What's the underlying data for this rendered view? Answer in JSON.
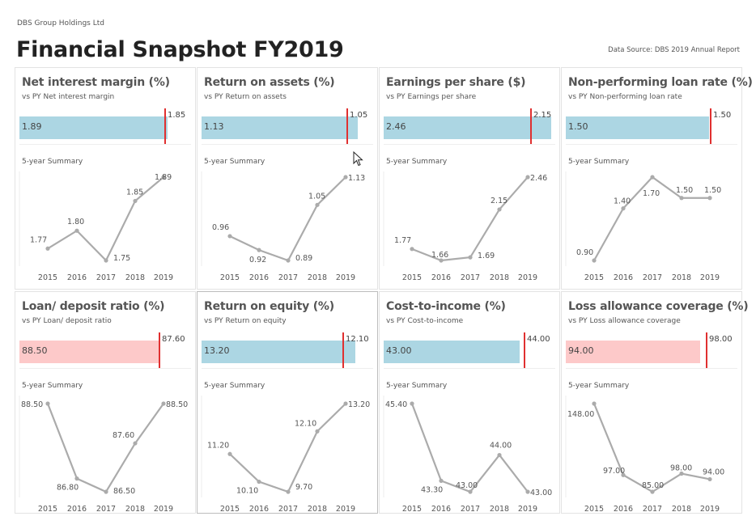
{
  "header": {
    "company": "DBS Group Holdings Ltd",
    "title": "Financial Snapshot FY2019",
    "source": "Data Source: DBS 2019 Annual Report"
  },
  "colors": {
    "favorable_bar": "#acd6e3",
    "unfavorable_bar": "#fdc9c9",
    "target_line": "#e03030",
    "trend_line": "#ababab"
  },
  "summary_label": "5-year Summary",
  "chart_data": [
    {
      "type": "line",
      "title": "Net interest margin (%)",
      "subtitle": "vs PY Net interest margin",
      "current": 1.89,
      "current_label": "1.89",
      "previous": 1.85,
      "previous_label": "1.85",
      "status": "favorable",
      "categories": [
        "2015",
        "2016",
        "2017",
        "2018",
        "2019"
      ],
      "values": [
        1.77,
        1.8,
        1.75,
        1.85,
        1.89
      ],
      "labels": [
        "1.77",
        "1.80",
        "1.75",
        "1.85",
        "1.89"
      ]
    },
    {
      "type": "line",
      "title": "Return on assets (%)",
      "subtitle": "vs PY Return on assets",
      "current": 1.13,
      "current_label": "1.13",
      "previous": 1.05,
      "previous_label": "1.05",
      "status": "favorable",
      "categories": [
        "2015",
        "2016",
        "2017",
        "2018",
        "2019"
      ],
      "values": [
        0.96,
        0.92,
        0.89,
        1.05,
        1.13
      ],
      "labels": [
        "0.96",
        "0.92",
        "0.89",
        "1.05",
        "1.13"
      ]
    },
    {
      "type": "line",
      "title": "Earnings per share ($)",
      "subtitle": "vs PY Earnings per share",
      "current": 2.46,
      "current_label": "2.46",
      "previous": 2.15,
      "previous_label": "2.15",
      "status": "favorable",
      "categories": [
        "2015",
        "2016",
        "2017",
        "2018",
        "2019"
      ],
      "values": [
        1.77,
        1.66,
        1.69,
        2.15,
        2.46
      ],
      "labels": [
        "1.77",
        "1.66",
        "1.69",
        "2.15",
        "2.46"
      ]
    },
    {
      "type": "line",
      "title": "Non-performing loan rate (%)",
      "subtitle": "vs PY Non-performing loan rate",
      "current": 1.5,
      "current_label": "1.50",
      "previous": 1.5,
      "previous_label": "1.50",
      "status": "favorable",
      "categories": [
        "2015",
        "2016",
        "2017",
        "2018",
        "2019"
      ],
      "values": [
        0.9,
        1.4,
        1.7,
        1.5,
        1.5
      ],
      "labels": [
        "0.90",
        "1.40",
        "1.70",
        "1.50",
        "1.50"
      ]
    },
    {
      "type": "line",
      "title": "Loan/ deposit ratio (%)",
      "subtitle": "vs PY Loan/ deposit ratio",
      "current": 88.5,
      "current_label": "88.50",
      "previous": 87.6,
      "previous_label": "87.60",
      "status": "unfavorable",
      "categories": [
        "2015",
        "2016",
        "2017",
        "2018",
        "2019"
      ],
      "values": [
        88.5,
        86.8,
        86.5,
        87.6,
        88.5
      ],
      "labels": [
        "88.50",
        "86.80",
        "86.50",
        "87.60",
        "88.50"
      ]
    },
    {
      "type": "line",
      "title": "Return on equity (%)",
      "subtitle": "vs PY Return on equity",
      "current": 13.2,
      "current_label": "13.20",
      "previous": 12.1,
      "previous_label": "12.10",
      "status": "favorable",
      "selected": true,
      "categories": [
        "2015",
        "2016",
        "2017",
        "2018",
        "2019"
      ],
      "values": [
        11.2,
        10.1,
        9.7,
        12.1,
        13.2
      ],
      "labels": [
        "11.20",
        "10.10",
        "9.70",
        "12.10",
        "13.20"
      ]
    },
    {
      "type": "line",
      "title": "Cost-to-income (%)",
      "subtitle": "vs PY Cost-to-income",
      "current": 43.0,
      "current_label": "43.00",
      "previous": 44.0,
      "previous_label": "44.00",
      "status": "favorable",
      "categories": [
        "2015",
        "2016",
        "2017",
        "2018",
        "2019"
      ],
      "values": [
        45.4,
        43.3,
        43.0,
        44.0,
        43.0
      ],
      "labels": [
        "45.40",
        "43.30",
        "43.00",
        "44.00",
        "43.00"
      ]
    },
    {
      "type": "line",
      "title": "Loss allowance coverage (%)",
      "subtitle": "vs PY Loss allowance coverage",
      "current": 94.0,
      "current_label": "94.00",
      "previous": 98.0,
      "previous_label": "98.00",
      "status": "unfavorable",
      "categories": [
        "2015",
        "2016",
        "2017",
        "2018",
        "2019"
      ],
      "values": [
        148.0,
        97.0,
        85.0,
        98.0,
        94.0
      ],
      "labels": [
        "148.00",
        "97.00",
        "85.00",
        "98.00",
        "94.00"
      ]
    }
  ]
}
